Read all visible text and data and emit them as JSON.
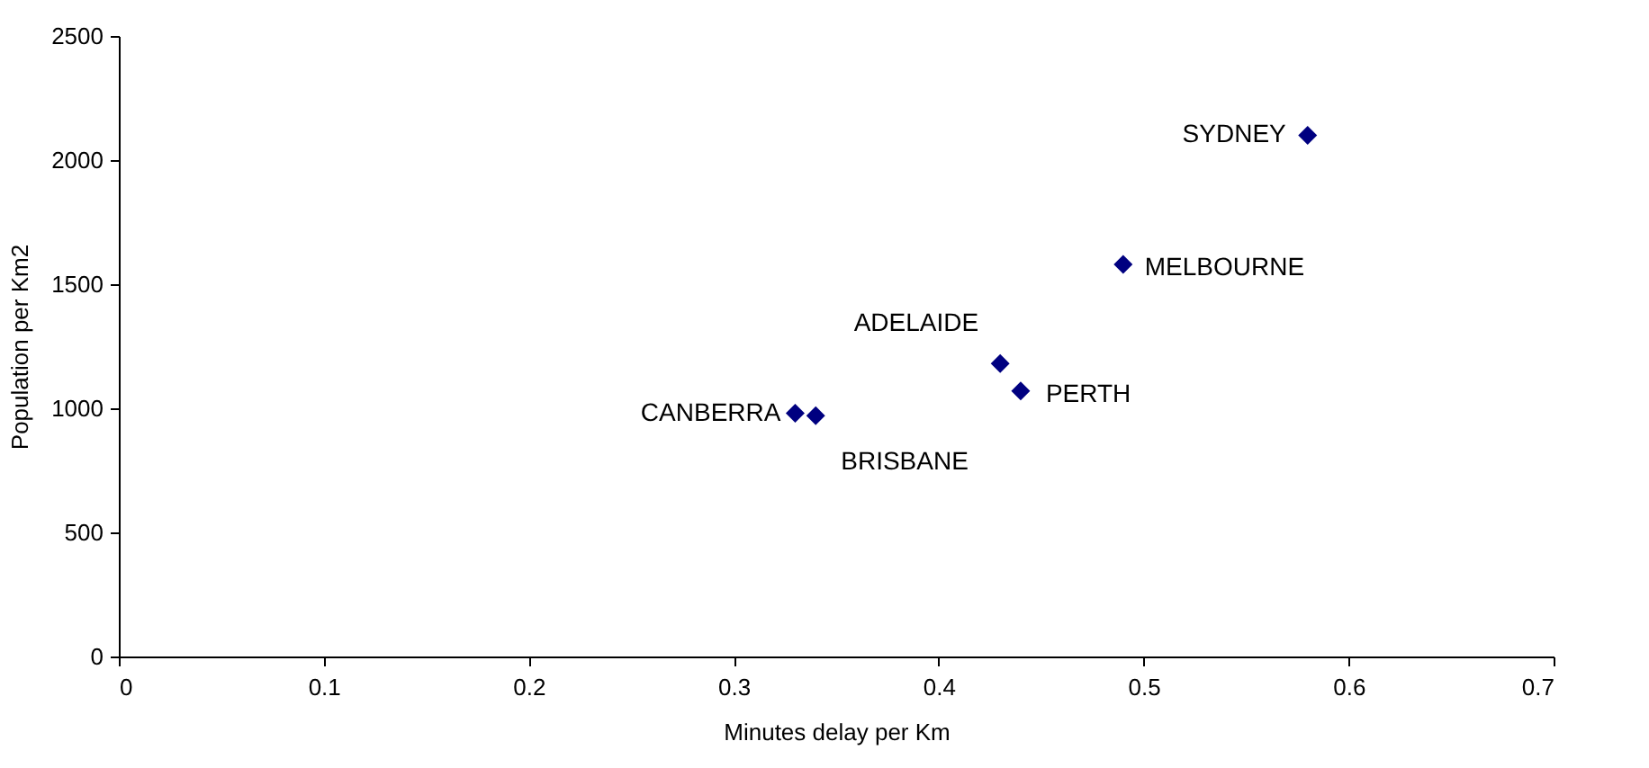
{
  "chart_data": {
    "type": "scatter",
    "xlabel": "Minutes delay per Km",
    "ylabel": "Population per Km2",
    "x": [
      0.58,
      0.49,
      0.43,
      0.44,
      0.33,
      0.34
    ],
    "series": [
      {
        "color": "#000080",
        "values": [
          2100,
          1580,
          1180,
          1070,
          980,
          970
        ]
      }
    ],
    "marker": "diamond",
    "grid": false,
    "legend": false,
    "xlim": [
      0,
      0.7
    ],
    "xticks": [
      0,
      0.1,
      0.2,
      0.3,
      0.4,
      0.5,
      0.6,
      0.7
    ],
    "ylim": [
      0,
      2500
    ],
    "yticks": [
      0,
      500,
      1000,
      1500,
      2000,
      2500
    ],
    "annotations": [
      {
        "text": "SYDNEY",
        "x": 0.58,
        "y": 2100
      },
      {
        "text": "MELBOURNE",
        "x": 0.49,
        "y": 1580
      },
      {
        "text": "ADELAIDE",
        "x": 0.43,
        "y": 1180
      },
      {
        "text": "PERTH",
        "x": 0.44,
        "y": 1070
      },
      {
        "text": "CANBERRA",
        "x": 0.33,
        "y": 980
      },
      {
        "text": "BRISBANE",
        "x": 0.34,
        "y": 970
      }
    ]
  }
}
